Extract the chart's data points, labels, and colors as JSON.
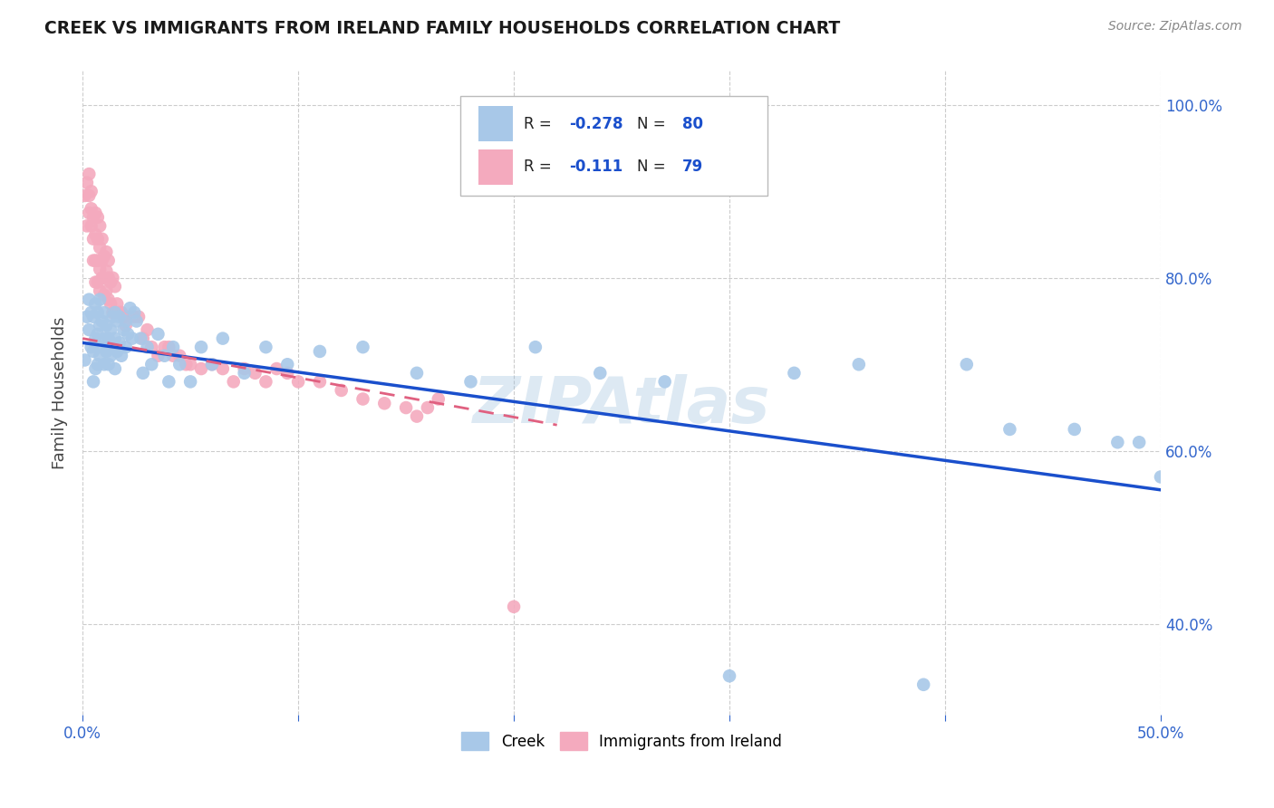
{
  "title": "CREEK VS IMMIGRANTS FROM IRELAND FAMILY HOUSEHOLDS CORRELATION CHART",
  "source": "Source: ZipAtlas.com",
  "ylabel": "Family Households",
  "xmin": 0.0,
  "xmax": 0.5,
  "ymin": 0.295,
  "ymax": 1.04,
  "creek_color": "#a8c8e8",
  "ireland_color": "#f4aabe",
  "creek_line_color": "#1a4fcc",
  "ireland_line_color": "#e06080",
  "watermark": "ZIPAtlas",
  "creek_scatter_x": [
    0.001,
    0.002,
    0.003,
    0.003,
    0.004,
    0.004,
    0.005,
    0.005,
    0.005,
    0.006,
    0.006,
    0.006,
    0.007,
    0.007,
    0.007,
    0.008,
    0.008,
    0.008,
    0.009,
    0.009,
    0.01,
    0.01,
    0.01,
    0.011,
    0.011,
    0.012,
    0.012,
    0.013,
    0.013,
    0.014,
    0.014,
    0.015,
    0.015,
    0.015,
    0.016,
    0.016,
    0.017,
    0.017,
    0.018,
    0.019,
    0.02,
    0.02,
    0.021,
    0.022,
    0.023,
    0.024,
    0.025,
    0.027,
    0.028,
    0.03,
    0.032,
    0.035,
    0.038,
    0.04,
    0.042,
    0.045,
    0.05,
    0.055,
    0.06,
    0.065,
    0.075,
    0.085,
    0.095,
    0.11,
    0.13,
    0.155,
    0.18,
    0.21,
    0.24,
    0.27,
    0.3,
    0.33,
    0.36,
    0.39,
    0.41,
    0.43,
    0.46,
    0.48,
    0.49,
    0.5
  ],
  "creek_scatter_y": [
    0.705,
    0.755,
    0.74,
    0.775,
    0.72,
    0.76,
    0.68,
    0.715,
    0.755,
    0.695,
    0.73,
    0.77,
    0.7,
    0.735,
    0.76,
    0.71,
    0.745,
    0.775,
    0.72,
    0.75,
    0.7,
    0.73,
    0.76,
    0.715,
    0.745,
    0.7,
    0.73,
    0.71,
    0.74,
    0.72,
    0.755,
    0.695,
    0.73,
    0.76,
    0.715,
    0.75,
    0.725,
    0.755,
    0.71,
    0.74,
    0.72,
    0.75,
    0.735,
    0.765,
    0.73,
    0.76,
    0.75,
    0.73,
    0.69,
    0.72,
    0.7,
    0.735,
    0.71,
    0.68,
    0.72,
    0.7,
    0.68,
    0.72,
    0.7,
    0.73,
    0.69,
    0.72,
    0.7,
    0.715,
    0.72,
    0.69,
    0.68,
    0.72,
    0.69,
    0.68,
    0.34,
    0.69,
    0.7,
    0.33,
    0.7,
    0.625,
    0.625,
    0.61,
    0.61,
    0.57
  ],
  "ireland_scatter_x": [
    0.001,
    0.002,
    0.002,
    0.003,
    0.003,
    0.003,
    0.004,
    0.004,
    0.004,
    0.005,
    0.005,
    0.005,
    0.006,
    0.006,
    0.006,
    0.006,
    0.007,
    0.007,
    0.007,
    0.007,
    0.008,
    0.008,
    0.008,
    0.008,
    0.009,
    0.009,
    0.009,
    0.01,
    0.01,
    0.01,
    0.011,
    0.011,
    0.011,
    0.012,
    0.012,
    0.012,
    0.013,
    0.013,
    0.014,
    0.014,
    0.015,
    0.015,
    0.016,
    0.017,
    0.018,
    0.019,
    0.02,
    0.022,
    0.024,
    0.026,
    0.028,
    0.03,
    0.032,
    0.035,
    0.038,
    0.04,
    0.042,
    0.045,
    0.048,
    0.05,
    0.055,
    0.06,
    0.065,
    0.07,
    0.075,
    0.08,
    0.085,
    0.09,
    0.095,
    0.1,
    0.11,
    0.12,
    0.13,
    0.14,
    0.15,
    0.155,
    0.16,
    0.165,
    0.2
  ],
  "ireland_scatter_y": [
    0.895,
    0.91,
    0.86,
    0.875,
    0.895,
    0.92,
    0.86,
    0.88,
    0.9,
    0.82,
    0.845,
    0.87,
    0.795,
    0.82,
    0.85,
    0.875,
    0.795,
    0.82,
    0.845,
    0.87,
    0.785,
    0.81,
    0.835,
    0.86,
    0.8,
    0.82,
    0.845,
    0.78,
    0.8,
    0.825,
    0.785,
    0.808,
    0.83,
    0.775,
    0.8,
    0.82,
    0.77,
    0.795,
    0.76,
    0.8,
    0.76,
    0.79,
    0.77,
    0.76,
    0.76,
    0.755,
    0.745,
    0.755,
    0.755,
    0.755,
    0.73,
    0.74,
    0.72,
    0.71,
    0.72,
    0.72,
    0.71,
    0.71,
    0.7,
    0.7,
    0.695,
    0.7,
    0.695,
    0.68,
    0.695,
    0.69,
    0.68,
    0.695,
    0.69,
    0.68,
    0.68,
    0.67,
    0.66,
    0.655,
    0.65,
    0.64,
    0.65,
    0.66,
    0.42
  ],
  "creek_line_x": [
    0.0,
    0.5
  ],
  "creek_line_y": [
    0.725,
    0.555
  ],
  "ireland_line_x": [
    0.0,
    0.22
  ],
  "ireland_line_y": [
    0.73,
    0.63
  ],
  "ytick_vals": [
    0.4,
    0.6,
    0.8,
    1.0
  ],
  "ytick_labels": [
    "40.0%",
    "60.0%",
    "80.0%",
    "100.0%"
  ],
  "legend_creek_r": "-0.278",
  "legend_creek_n": "80",
  "legend_ireland_r": "-0.111",
  "legend_ireland_n": "79"
}
